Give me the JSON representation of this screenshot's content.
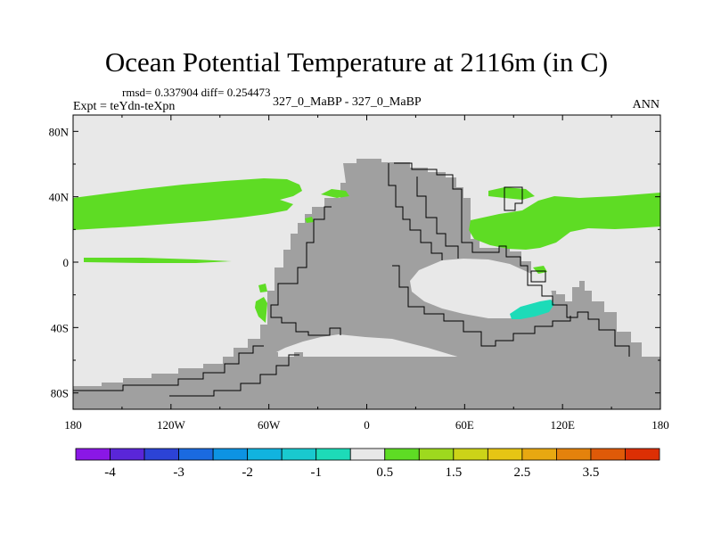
{
  "chart_data": {
    "type": "heatmap",
    "title": "Ocean Potential Temperature at 2116m (in C)",
    "stats_text": "rmsd= 0.337904 diff= 0.254473",
    "left_string": "Expt = teYdn-teXpn",
    "center_string": "327_0_MaBP - 327_0_MaBP",
    "right_string": "ANN",
    "x_ticks": [
      "180",
      "120W",
      "60W",
      "0",
      "60E",
      "120E",
      "180"
    ],
    "y_ticks": [
      "80N",
      "40N",
      "0",
      "40S",
      "80S"
    ],
    "x_tick_values": [
      -180,
      -120,
      -60,
      0,
      60,
      120,
      180
    ],
    "y_tick_values": [
      80,
      40,
      0,
      -40,
      -80
    ],
    "xlim": [
      -180,
      180
    ],
    "ylim": [
      -90,
      90
    ],
    "colorbar": {
      "colors": [
        "#8a17e6",
        "#5a26d8",
        "#2c43d6",
        "#1a6ae0",
        "#0d93e3",
        "#11b3df",
        "#19c9cf",
        "#1ddbb8",
        "#e8e8e8",
        "#5edc24",
        "#9ed91e",
        "#ccd318",
        "#e6c514",
        "#e8a811",
        "#e4820c",
        "#df5a08",
        "#dc2f04"
      ],
      "labels": [
        "-4",
        "-3",
        "-2",
        "-1",
        "0.5",
        "1.5",
        "2.5",
        "3.5"
      ]
    },
    "land_color": "#a0a0a0",
    "ocean_background_color": "#e8e8e8",
    "anomaly_regions": [
      {
        "name": "north-pacific-warm-band",
        "value": 0.5,
        "color": "#5edc24"
      },
      {
        "name": "east-tethys-warm-band",
        "value": 0.5,
        "color": "#5edc24"
      },
      {
        "name": "southern-tethys-cool-patch",
        "value": -1.0,
        "color": "#1ddbb8"
      }
    ]
  }
}
